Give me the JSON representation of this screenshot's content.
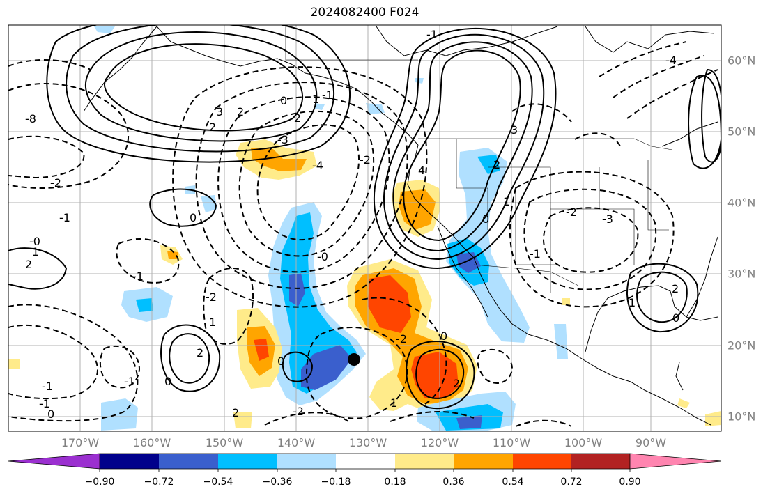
{
  "title": "2024082400 F024",
  "longitude_labels": [
    "170°W",
    "160°W",
    "150°W",
    "140°W",
    "130°W",
    "120°W",
    "110°W",
    "100°W",
    "90°W"
  ],
  "latitude_labels": [
    "60°N",
    "50°N",
    "40°N",
    "30°N",
    "20°N",
    "10°N"
  ],
  "contour_labels": {
    "alaska_high": [
      "3",
      "2",
      "2",
      "1",
      "0"
    ],
    "west_coast_ridge": [
      "4",
      "3",
      "2",
      "1",
      "0",
      "-1"
    ],
    "pacific_trough": [
      "-2",
      "-3",
      "-4",
      "-1",
      "-2",
      "-0",
      "0",
      "-2",
      "-1"
    ],
    "tropical_systems": [
      "2",
      "-2",
      "0",
      "-1",
      "0",
      "2",
      "1",
      "-1",
      "0",
      "2",
      "1"
    ],
    "gulf_high": [
      "2",
      "1",
      "0"
    ],
    "east_trough": [
      "-2",
      "-3",
      "-4",
      "-1"
    ],
    "west_edge": [
      "-2",
      "-1",
      "-0",
      "0",
      "1",
      "2",
      "-8",
      "-2",
      "-1"
    ]
  },
  "colorbar": {
    "tick_labels": [
      "−0.90",
      "−0.72",
      "−0.54",
      "−0.36",
      "−0.18",
      "0.18",
      "0.36",
      "0.54",
      "0.72",
      "0.90"
    ],
    "colors": [
      "#9b30d0",
      "#00008b",
      "#3a5fcd",
      "#00bfff",
      "#b0e0ff",
      "#ffffff",
      "#ffeb8a",
      "#ffa500",
      "#ff4500",
      "#b22222",
      "#ff85b0"
    ]
  },
  "colors": {
    "neg_strong": "#3a5fcd",
    "neg_mid": "#00bfff",
    "neg_weak": "#b0e0ff",
    "pos_weak": "#ffeb8a",
    "pos_mid": "#ffa500",
    "pos_strong": "#ff4500",
    "gridline": "#b0b0b0"
  },
  "storm_marker": {
    "lon": -131,
    "lat": 17.8
  }
}
